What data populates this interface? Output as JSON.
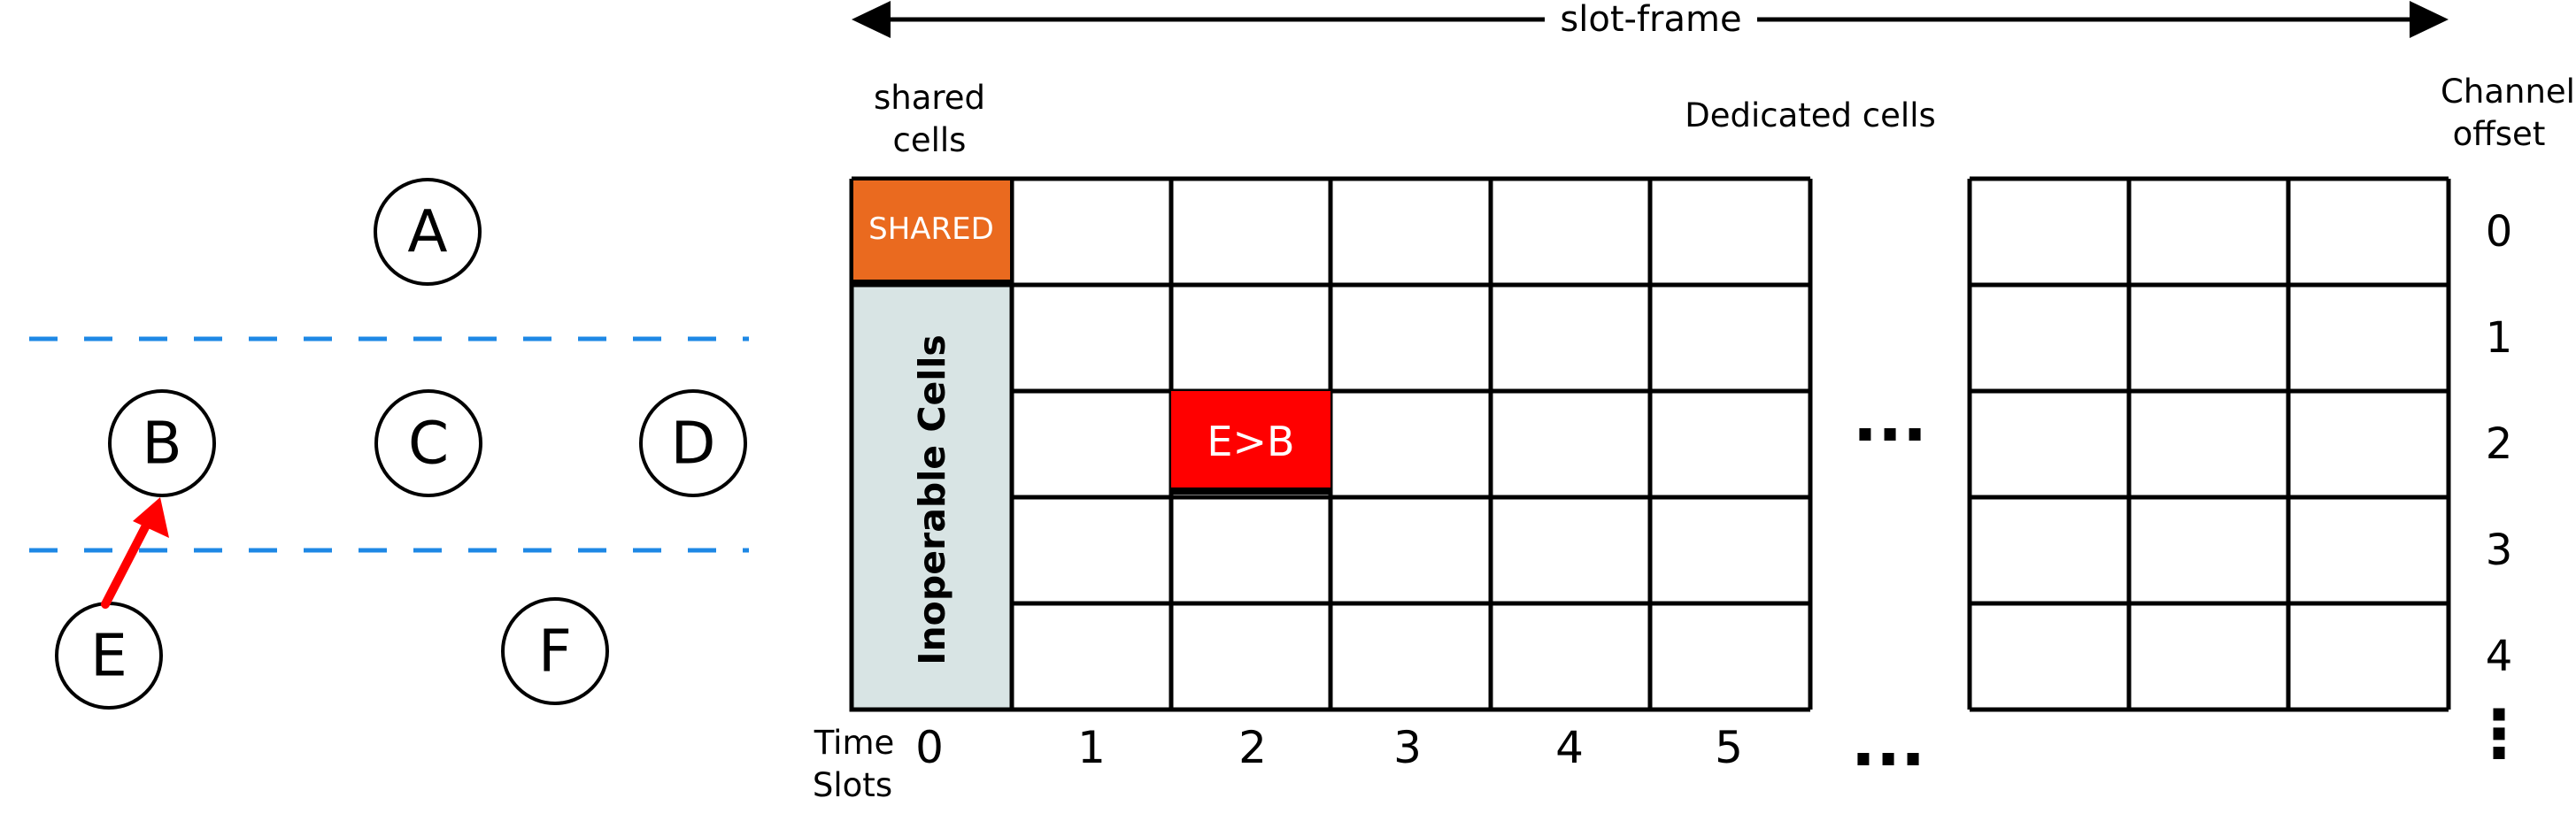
{
  "topology": {
    "nodes": [
      "A",
      "B",
      "C",
      "D",
      "E",
      "F"
    ],
    "link": {
      "from": "E",
      "to": "B",
      "color": "#ff0000"
    },
    "divider_color": "#1e88e5"
  },
  "schedule": {
    "slotframe_label": "slot-frame",
    "shared_cells_label": [
      "shared",
      "cells"
    ],
    "dedicated_cells_label": "Dedicated cells",
    "channel_offset_label": [
      "Channel",
      "offset"
    ],
    "time_slots_label": [
      "Time",
      "Slots"
    ],
    "shared_cell_text": "SHARED",
    "inoperable_text": "Inoperable Cells",
    "ellipsis": "...",
    "vertical_ellipsis": "⋮",
    "time_slots": [
      "0",
      "1",
      "2",
      "3",
      "4",
      "5"
    ],
    "channel_offsets": [
      "0",
      "1",
      "2",
      "3",
      "4"
    ],
    "allocated_cell": {
      "label": "E>B",
      "slot": 2,
      "channel": 2,
      "color": "#ff0000"
    },
    "colors": {
      "shared": "#ea6a1f",
      "inoperable": "#d8e4e4",
      "grid": "#000000"
    }
  }
}
